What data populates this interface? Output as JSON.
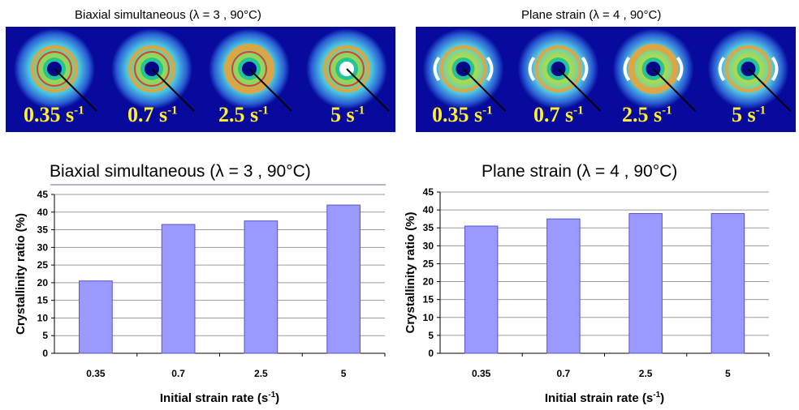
{
  "image_strips": [
    {
      "title": "Biaxial simultaneous (λ = 3 , 90°C)",
      "frames": [
        {
          "rate": "0.35",
          "unit": "s",
          "exp": "-1"
        },
        {
          "rate": "0.7",
          "unit": "s",
          "exp": "-1"
        },
        {
          "rate": "2.5",
          "unit": "s",
          "exp": "-1"
        },
        {
          "rate": "5",
          "unit": "s",
          "exp": "-1"
        }
      ]
    },
    {
      "title": "Plane strain (λ = 4 , 90°C)",
      "frames": [
        {
          "rate": "0.35",
          "unit": "s",
          "exp": "-1"
        },
        {
          "rate": "0.7",
          "unit": "s",
          "exp": "-1"
        },
        {
          "rate": "2.5",
          "unit": "s",
          "exp": "-1"
        },
        {
          "rate": "5",
          "unit": "s",
          "exp": "-1"
        }
      ]
    }
  ],
  "colors": {
    "bar_fill": "#9999ff",
    "bar_stroke": "#5555cc",
    "grid": "#9a9a9a",
    "strip_background": "#070a9c",
    "rate_label": "#ffef2e"
  },
  "chart_data": [
    {
      "type": "bar",
      "title": "Biaxial simultaneous (λ = 3 , 90°C)",
      "categories": [
        "0.35",
        "0.7",
        "2.5",
        "5"
      ],
      "values": [
        20.5,
        36.5,
        37.5,
        42
      ],
      "xlabel": "Initial strain rate (s",
      "xlabel_sup": "-1",
      "xlabel_end": ")",
      "ylabel": "Crystallinity ratio (%)",
      "ylim": [
        0,
        45
      ],
      "yticks": [
        0,
        5,
        10,
        15,
        20,
        25,
        30,
        35,
        40,
        45
      ],
      "grid": true
    },
    {
      "type": "bar",
      "title": "Plane strain (λ = 4 , 90°C)",
      "categories": [
        "0.35",
        "0.7",
        "2.5",
        "5"
      ],
      "values": [
        35.5,
        37.5,
        39,
        39
      ],
      "xlabel": "Initial strain rate (s",
      "xlabel_sup": "-1",
      "xlabel_end": ")",
      "ylabel": "Crystallinity ratio (%)",
      "ylim": [
        0,
        45
      ],
      "yticks": [
        0,
        5,
        10,
        15,
        20,
        25,
        30,
        35,
        40,
        45
      ],
      "grid": true
    }
  ]
}
